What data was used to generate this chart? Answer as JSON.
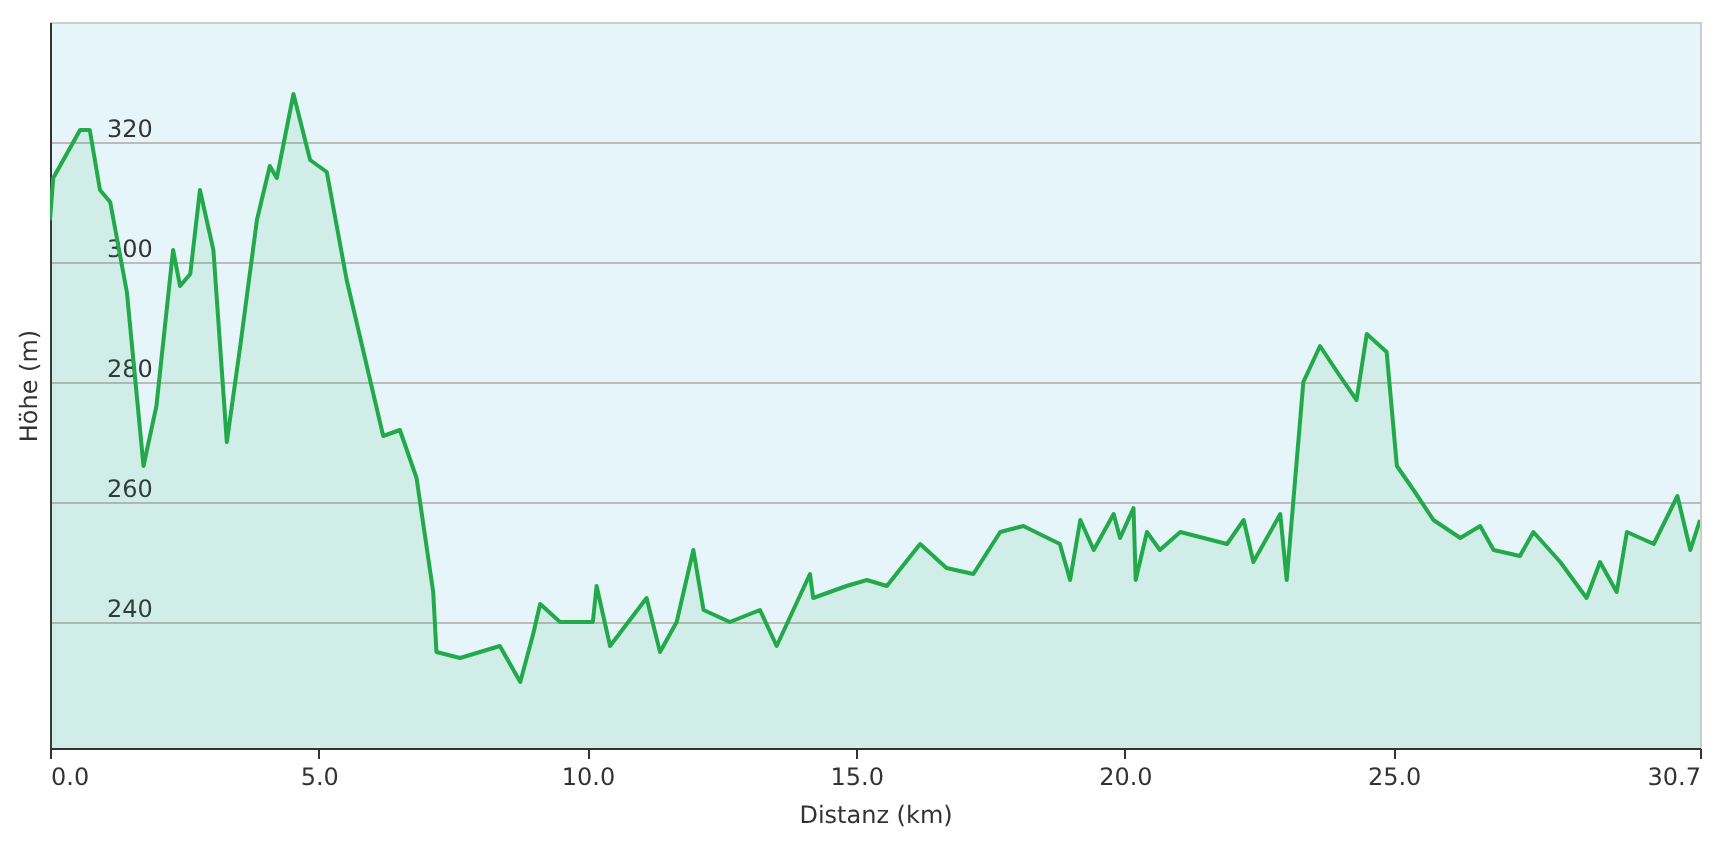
{
  "chart_data": {
    "type": "area",
    "xlabel": "Distanz  (km)",
    "ylabel": "Höhe (m)",
    "x": [
      0,
      0.06,
      0.31,
      0.56,
      0.74,
      0.93,
      1.12,
      1.43,
      1.74,
      1.98,
      2.29,
      2.42,
      2.61,
      2.79,
      3.04,
      3.29,
      3.54,
      3.85,
      4.09,
      4.22,
      4.53,
      4.84,
      5.15,
      5.52,
      6.2,
      6.51,
      6.82,
      7.13,
      7.19,
      7.63,
      8.37,
      8.75,
      8.99,
      9.12,
      9.49,
      9.61,
      10.1,
      10.17,
      10.42,
      11.1,
      11.35,
      11.66,
      11.97,
      12.16,
      12.65,
      13.21,
      13.52,
      14.14,
      14.2,
      14.82,
      15.2,
      15.57,
      16.19,
      16.68,
      17.18,
      17.68,
      18.11,
      18.79,
      18.98,
      19.17,
      19.42,
      19.79,
      19.91,
      20.16,
      20.2,
      20.41,
      20.65,
      21.03,
      21.9,
      22.21,
      22.39,
      22.89,
      23.01,
      23.32,
      23.63,
      24.0,
      24.31,
      24.5,
      24.87,
      25.06,
      25.37,
      25.74,
      26.24,
      26.61,
      26.86,
      27.35,
      27.6,
      28.1,
      28.59,
      28.84,
      29.15,
      29.34,
      29.84,
      30.28,
      30.52,
      30.7
    ],
    "series": [
      {
        "color": "#22aa4a",
        "values": [
          307,
          314,
          318,
          322,
          322,
          312,
          310,
          295,
          266,
          276,
          302,
          296,
          298,
          312,
          302,
          270,
          286,
          307,
          316,
          314,
          328,
          317,
          315,
          297,
          271,
          272,
          264,
          245,
          235,
          234,
          236,
          230,
          238,
          243,
          240,
          240,
          240,
          246,
          236,
          244,
          235,
          240,
          252,
          242,
          240,
          242,
          236,
          248,
          244,
          246,
          247,
          246,
          253,
          249,
          248,
          255,
          256,
          253,
          247,
          257,
          252,
          258,
          254,
          259,
          247,
          255,
          252,
          255,
          253,
          257,
          250,
          258,
          247,
          280,
          286,
          281,
          277,
          288,
          285,
          266,
          262,
          257,
          254,
          256,
          252,
          251,
          255,
          250,
          244,
          250,
          245,
          255,
          253,
          261,
          252,
          257
        ]
      }
    ],
    "xlim": [
      0,
      30.7
    ],
    "ylim": [
      219,
      340
    ],
    "xticks": [
      {
        "value": 0,
        "label": "0.0"
      },
      {
        "value": 5,
        "label": "5.0"
      },
      {
        "value": 10,
        "label": "10.0"
      },
      {
        "value": 15,
        "label": "15.0"
      },
      {
        "value": 20,
        "label": "20.0"
      },
      {
        "value": 25,
        "label": "25.0"
      },
      30.7
    ],
    "yticks": [
      240,
      260,
      280,
      300,
      320
    ],
    "grid": "y"
  }
}
